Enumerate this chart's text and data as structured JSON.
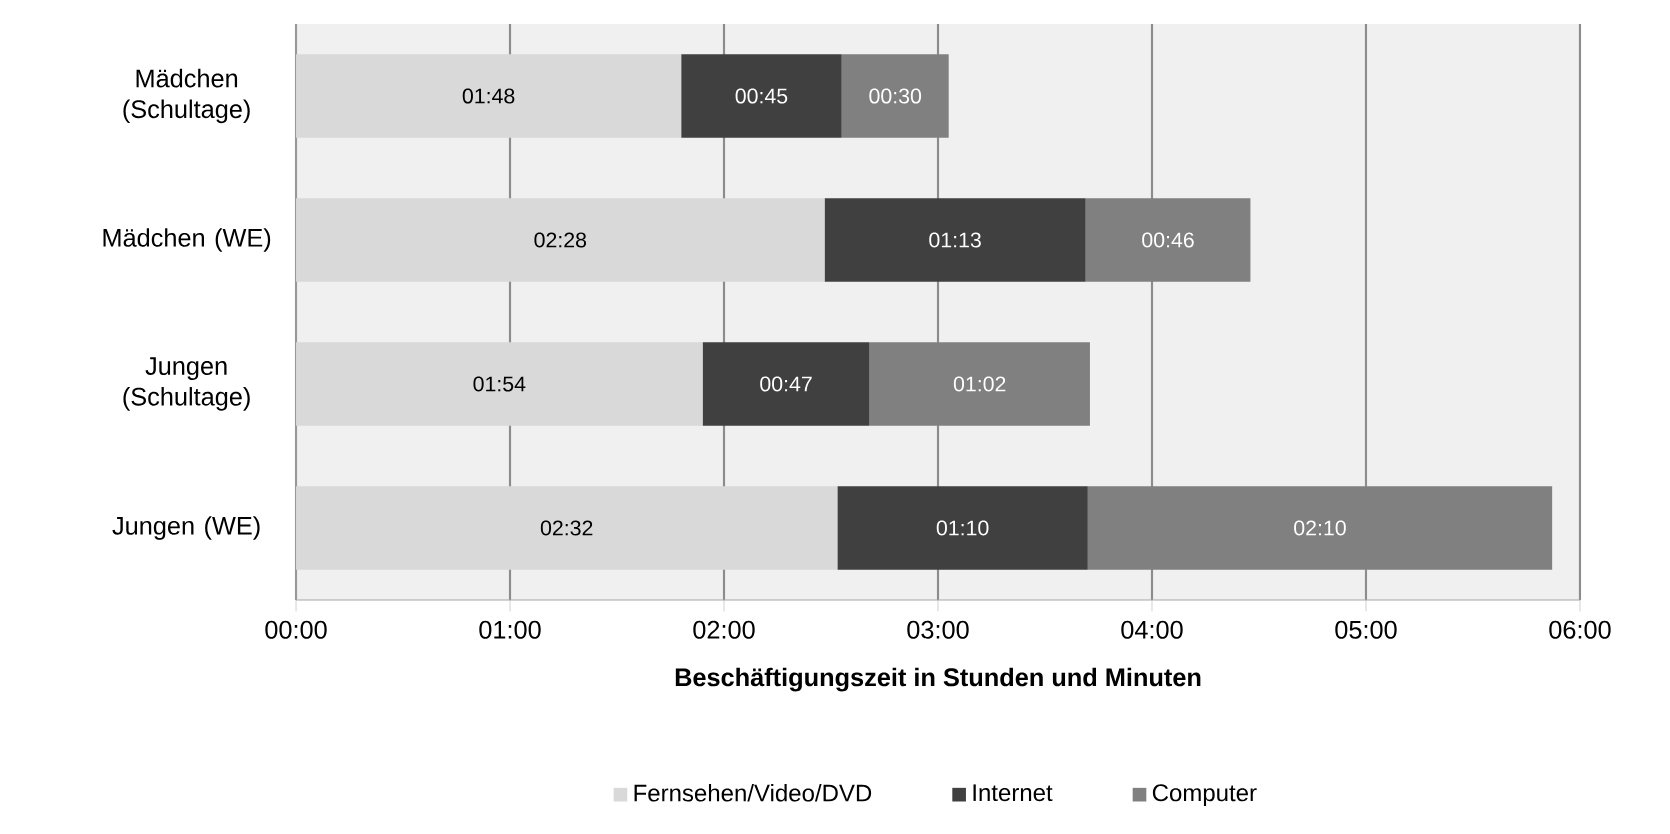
{
  "chart_data": {
    "type": "bar",
    "orientation": "horizontal",
    "stacked": true,
    "xlabel": "Beschäftigungszeit in Stunden und Minuten",
    "categories": [
      "Mädchen (Schultage)",
      "Mädchen (WE)",
      "Jungen (Schultage)",
      "Jungen (WE)"
    ],
    "series": [
      {
        "name": "Fernsehen/Video/DVD",
        "color": "#d9d9d9",
        "values": [
          1.8,
          2.47,
          1.9,
          2.53
        ],
        "value_labels": [
          "01:48",
          "02:28",
          "01:54",
          "02:32"
        ]
      },
      {
        "name": "Internet",
        "color": "#404040",
        "values": [
          0.75,
          1.22,
          0.78,
          1.17
        ],
        "value_labels": [
          "00:45",
          "01:13",
          "00:47",
          "01:10"
        ]
      },
      {
        "name": "Computer",
        "color": "#808080",
        "values": [
          0.5,
          0.77,
          1.03,
          2.17
        ],
        "value_labels": [
          "00:30",
          "00:46",
          "01:02",
          "02:10"
        ]
      }
    ],
    "xlim": [
      0,
      6
    ],
    "xticks": [
      {
        "value": 0,
        "label": "00:00"
      },
      {
        "value": 1,
        "label": "01:00"
      },
      {
        "value": 2,
        "label": "02:00"
      },
      {
        "value": 3,
        "label": "03:00"
      },
      {
        "value": 4,
        "label": "04:00"
      },
      {
        "value": 5,
        "label": "05:00"
      },
      {
        "value": 6,
        "label": "06:00"
      }
    ],
    "grid": "x",
    "legend": "bottom"
  }
}
